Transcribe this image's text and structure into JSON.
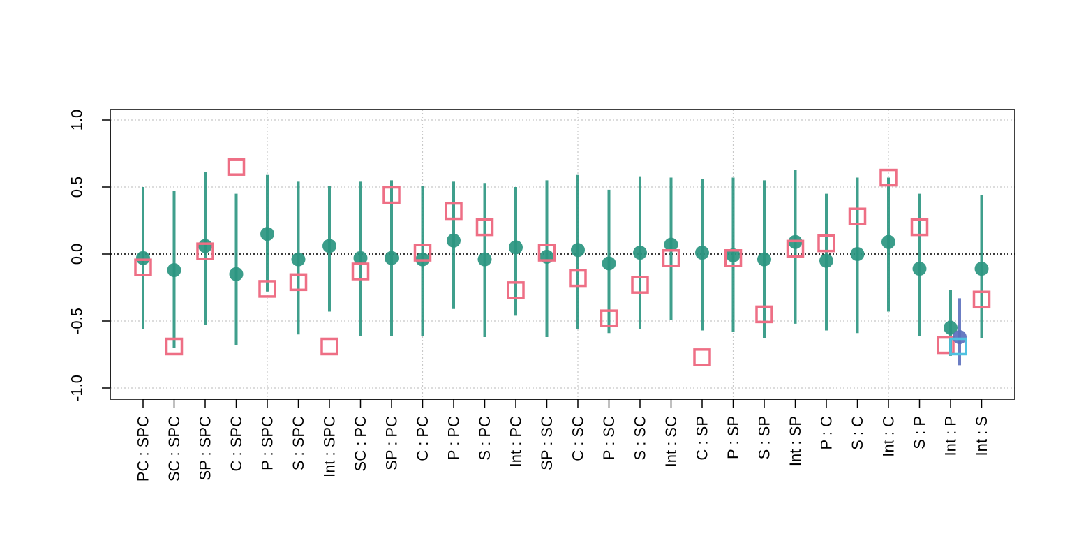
{
  "chart_data": {
    "type": "scatter",
    "title": "",
    "xlabel": "",
    "ylabel": "",
    "ylim": [
      -1.0,
      1.0
    ],
    "yticks": [
      -1.0,
      -0.5,
      0.0,
      0.5,
      1.0
    ],
    "ytick_labels": [
      "-1.0",
      "-0.5",
      "0.0",
      "0.5",
      "1.0"
    ],
    "grid": true,
    "reference_line": 0,
    "categories": [
      "PC : SPC",
      "SC : SPC",
      "SP : SPC",
      "C : SPC",
      "P : SPC",
      "S : SPC",
      "Int : SPC",
      "SC : PC",
      "SP : PC",
      "C : PC",
      "P : PC",
      "S : PC",
      "Int : PC",
      "SP : SC",
      "C : SC",
      "P : SC",
      "S : SC",
      "Int : SC",
      "C : SP",
      "P : SP",
      "S : SP",
      "Int : SP",
      "P : C",
      "S : C",
      "Int : C",
      "S : P",
      "Int : P",
      "Int : S"
    ],
    "series": [
      {
        "marker": "filled-circle",
        "color": "#2a9580",
        "values": [
          -0.03,
          -0.12,
          0.06,
          -0.15,
          0.15,
          -0.04,
          0.06,
          -0.03,
          -0.03,
          -0.04,
          0.1,
          -0.04,
          0.05,
          -0.02,
          0.03,
          -0.07,
          0.01,
          0.07,
          0.01,
          -0.01,
          -0.04,
          0.09,
          -0.05,
          0.0,
          0.09,
          -0.11,
          -0.55,
          -0.11
        ],
        "lower": [
          -0.56,
          -0.7,
          -0.53,
          -0.68,
          -0.28,
          -0.6,
          -0.43,
          -0.61,
          -0.61,
          -0.61,
          -0.41,
          -0.62,
          -0.46,
          -0.62,
          -0.56,
          -0.59,
          -0.56,
          -0.49,
          -0.57,
          -0.58,
          -0.63,
          -0.52,
          -0.57,
          -0.59,
          -0.43,
          -0.61,
          -0.76,
          -0.63
        ],
        "upper": [
          0.5,
          0.47,
          0.61,
          0.45,
          0.59,
          0.54,
          0.51,
          0.54,
          0.55,
          0.51,
          0.54,
          0.53,
          0.5,
          0.55,
          0.59,
          0.48,
          0.58,
          0.57,
          0.56,
          0.57,
          0.55,
          0.63,
          0.45,
          0.57,
          0.57,
          0.45,
          -0.27,
          0.44
        ]
      },
      {
        "marker": "open-square",
        "color": "#ee6f85",
        "values": [
          -0.1,
          -0.69,
          0.02,
          0.65,
          -0.26,
          -0.21,
          -0.69,
          -0.13,
          0.44,
          0.01,
          0.32,
          0.2,
          -0.27,
          0.01,
          -0.18,
          -0.48,
          -0.23,
          -0.03,
          -0.77,
          -0.03,
          -0.45,
          0.04,
          0.08,
          0.28,
          0.57,
          0.2,
          -0.68,
          -0.34
        ]
      },
      {
        "marker": "filled-circle",
        "color": "#5b6fbd",
        "points": [
          {
            "category": "Int : P",
            "value": -0.62,
            "lower": -0.83,
            "upper": -0.33
          }
        ]
      },
      {
        "marker": "open-square",
        "color": "#4fc1e0",
        "points": [
          {
            "category": "Int : P",
            "value": -0.69
          }
        ]
      }
    ]
  }
}
